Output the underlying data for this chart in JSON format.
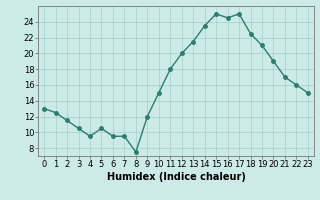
{
  "x": [
    0,
    1,
    2,
    3,
    4,
    5,
    6,
    7,
    8,
    9,
    10,
    11,
    12,
    13,
    14,
    15,
    16,
    17,
    18,
    19,
    20,
    21,
    22,
    23
  ],
  "y": [
    13.0,
    12.5,
    11.5,
    10.5,
    9.5,
    10.5,
    9.5,
    9.5,
    7.5,
    12.0,
    15.0,
    18.0,
    20.0,
    21.5,
    23.5,
    25.0,
    24.5,
    25.0,
    22.5,
    21.0,
    19.0,
    17.0,
    16.0,
    15.0
  ],
  "line_color": "#2e7d6e",
  "marker": "o",
  "markersize": 2.5,
  "linewidth": 1.0,
  "xlabel": "Humidex (Indice chaleur)",
  "xlim": [
    -0.5,
    23.5
  ],
  "ylim": [
    7,
    26
  ],
  "yticks": [
    8,
    10,
    12,
    14,
    16,
    18,
    20,
    22,
    24
  ],
  "xticks": [
    0,
    1,
    2,
    3,
    4,
    5,
    6,
    7,
    8,
    9,
    10,
    11,
    12,
    13,
    14,
    15,
    16,
    17,
    18,
    19,
    20,
    21,
    22,
    23
  ],
  "bg_color": "#cceae7",
  "grid_color": "#aad4d0",
  "xlabel_fontsize": 7,
  "tick_fontsize": 6
}
